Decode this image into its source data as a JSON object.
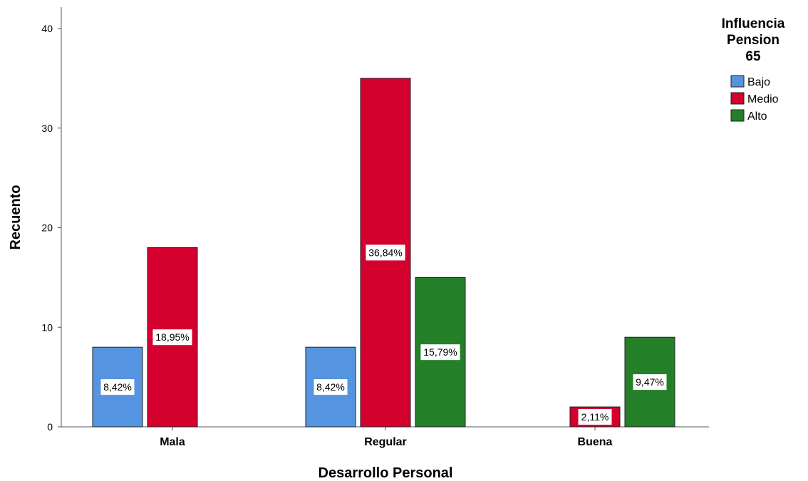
{
  "chart_data": {
    "type": "bar",
    "xlabel": "Desarrollo Personal",
    "ylabel": "Recuento",
    "ylim": [
      0,
      42
    ],
    "yticks": [
      0,
      10,
      20,
      30,
      40
    ],
    "grid": false,
    "legend_placement": "top-right",
    "legend_title_lines": [
      "Influencia",
      "Pension",
      "65"
    ],
    "categories": [
      "Mala",
      "Regular",
      "Buena"
    ],
    "series": [
      {
        "name": "Bajo",
        "color": "#5594e0",
        "values": [
          8,
          8,
          0
        ],
        "labels": [
          "8,42%",
          "8,42%",
          ""
        ]
      },
      {
        "name": "Medio",
        "color": "#d4002e",
        "values": [
          18,
          35,
          2
        ],
        "labels": [
          "18,95%",
          "36,84%",
          "2,11%"
        ]
      },
      {
        "name": "Alto",
        "color": "#248028",
        "values": [
          0,
          15,
          9
        ],
        "labels": [
          "",
          "15,79%",
          "9,47%"
        ]
      }
    ]
  }
}
